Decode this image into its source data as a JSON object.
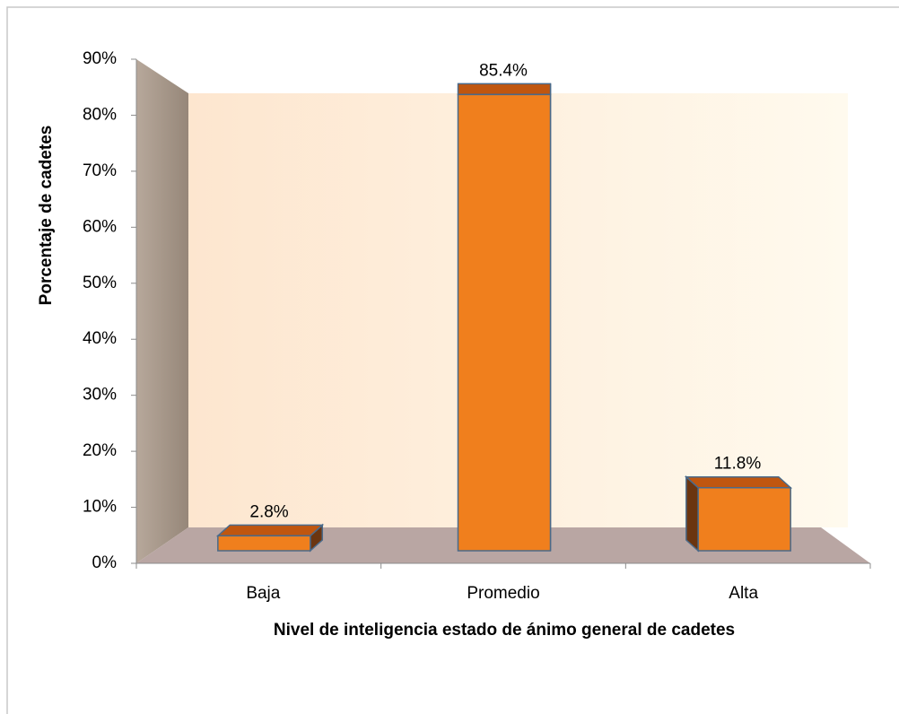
{
  "chart_data": {
    "type": "bar3d",
    "x_label": "Nivel de inteligencia estado de ánimo general de cadetes",
    "y_label": "Porcentaje de cadetes",
    "categories": [
      "Baja",
      "Promedio",
      "Alta"
    ],
    "values": [
      2.8,
      85.4,
      11.8
    ],
    "value_labels": [
      "2.8%",
      "85.4%",
      "11.8%"
    ],
    "color": "#f07f1d",
    "ylim": [
      0,
      90
    ],
    "yticks": [
      {
        "value": 0,
        "label": "0%"
      },
      {
        "value": 10,
        "label": "10%"
      },
      {
        "value": 20,
        "label": "20%"
      },
      {
        "value": 30,
        "label": "30%"
      },
      {
        "value": 40,
        "label": "40%"
      },
      {
        "value": 50,
        "label": "50%"
      },
      {
        "value": 60,
        "label": "60%"
      },
      {
        "value": 70,
        "label": "70%"
      },
      {
        "value": 80,
        "label": "80%"
      },
      {
        "value": 90,
        "label": "90%"
      }
    ]
  }
}
